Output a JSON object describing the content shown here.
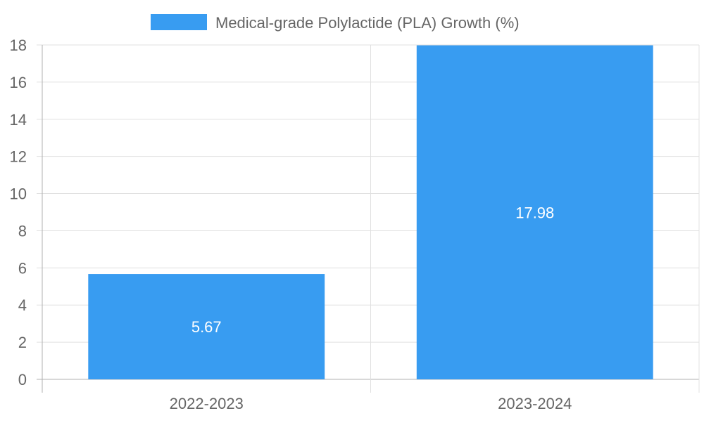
{
  "chart_data": {
    "type": "bar",
    "title": "",
    "categories": [
      "2022-2023",
      "2023-2024"
    ],
    "series": [
      {
        "name": "Medical-grade Polylactide (PLA) Growth (%)",
        "values": [
          5.67,
          17.98
        ],
        "color": "#389cf1"
      }
    ],
    "data_labels": [
      "5.67",
      "17.98"
    ],
    "xlabel": "",
    "ylabel": "",
    "ylim": [
      0,
      18
    ],
    "yticks": [
      0,
      2,
      4,
      6,
      8,
      10,
      12,
      14,
      16,
      18
    ],
    "grid": true,
    "legend_position": "top-center"
  }
}
